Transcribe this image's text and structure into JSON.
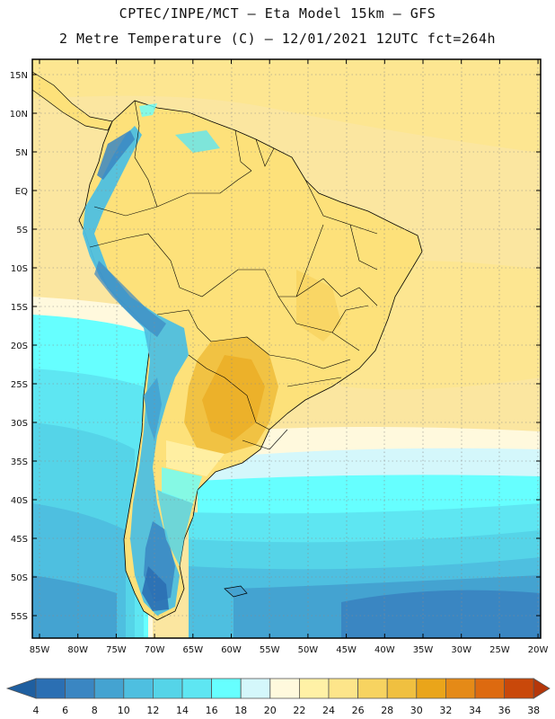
{
  "header": {
    "line1": "CPTEC/INPE/MCT –  Eta Model 15km – GFS",
    "line2": "2 Metre Temperature (C) – 12/01/2021 12UTC fct=264h"
  },
  "map": {
    "lat_labels": [
      "15N",
      "10N",
      "5N",
      "EQ",
      "5S",
      "10S",
      "15S",
      "20S",
      "25S",
      "30S",
      "35S",
      "40S",
      "45S",
      "50S",
      "55S"
    ],
    "lon_labels": [
      "85W",
      "80W",
      "75W",
      "70W",
      "65W",
      "60W",
      "55W",
      "50W",
      "45W",
      "40W",
      "35W",
      "30W",
      "25W",
      "20W"
    ],
    "land_base_color": "#fde17a",
    "ocean_tropical_color": "#fbe6a0",
    "frame_color": "#000000",
    "grid_style": "dotted"
  },
  "colorbar": {
    "labels": [
      "4",
      "6",
      "8",
      "10",
      "12",
      "14",
      "16",
      "18",
      "20",
      "22",
      "24",
      "26",
      "28",
      "30",
      "32",
      "34",
      "36",
      "38"
    ],
    "colors": [
      "#2b6fb3",
      "#3a86c2",
      "#44a3d1",
      "#4ebfe0",
      "#55d4e8",
      "#5ee6f2",
      "#66ffff",
      "#d4f7fb",
      "#fff9dd",
      "#fff1a6",
      "#fde58a",
      "#f7d360",
      "#f0c040",
      "#eaa51a",
      "#e58a17",
      "#dd6a10",
      "#c9480a"
    ],
    "lower_extend_color": "#1f5fa0",
    "upper_extend_color": "#b5370a"
  }
}
